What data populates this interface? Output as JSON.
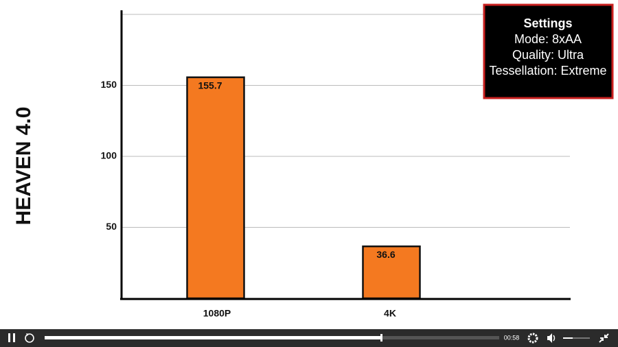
{
  "chart_data": {
    "type": "bar",
    "title": "HEAVEN 4.0",
    "categories": [
      "1080P",
      "4K"
    ],
    "values": [
      155.7,
      36.6
    ],
    "color": "#f47920",
    "ylim": [
      0,
      200
    ],
    "yticks": [
      50,
      100,
      150
    ],
    "grid": true,
    "settings_box": {
      "title": "Settings",
      "lines": [
        "Mode: 8xAA",
        "Quality: Ultra",
        "Tessellation: Extreme"
      ]
    }
  },
  "player": {
    "time": "00:58"
  }
}
